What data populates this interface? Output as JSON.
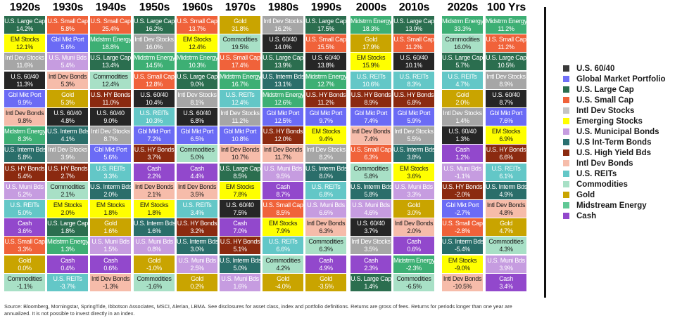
{
  "chart_data": {
    "type": "table",
    "title": "Asset class returns by decade",
    "columns": [
      "1920s",
      "1930s",
      "1940s",
      "1950s",
      "1960s",
      "1970s",
      "1980s",
      "1990s",
      "2000s",
      "2010s",
      "2020s",
      "100 Yrs"
    ],
    "cells": [
      [
        [
          "U.S. Large Cap",
          "14.2%",
          "lc"
        ],
        [
          "EM Stocks",
          "12.1%",
          "em"
        ],
        [
          "Intl Dev Stocks",
          "11.6%",
          "ids"
        ],
        [
          "U.S. 60/40",
          "11.3%",
          "u6040"
        ],
        [
          "Gbl Mkt Port",
          "9.9%",
          "gmp"
        ],
        [
          "Intl Dev Bonds",
          "9.8%",
          "idb"
        ],
        [
          "Midstrm Energy",
          "8.3%",
          "me"
        ],
        [
          "U.S. Interm Bds",
          "5.8%",
          "ib"
        ],
        [
          "U.S. HY Bonds",
          "5.4%",
          "hy"
        ],
        [
          "U.S. Muni Bds",
          "5.2%",
          "muni"
        ],
        [
          "U.S. REITs",
          "5.0%",
          "reit"
        ],
        [
          "Cash",
          "3.6%",
          "cash"
        ],
        [
          "U.S. Small Cap",
          "3.3%",
          "sc"
        ],
        [
          "Gold",
          "0.0%",
          "gold"
        ],
        [
          "Commodities",
          "-1.1%",
          "comm"
        ]
      ],
      [
        [
          "U.S. Small Cap",
          "5.8%",
          "sc"
        ],
        [
          "Gbl Mkt Port",
          "5.6%",
          "gmp"
        ],
        [
          "U.S. Muni Bds",
          "5.4%",
          "muni"
        ],
        [
          "Intl Dev Bonds",
          "5.3%",
          "idb"
        ],
        [
          "Gold",
          "5.3%",
          "gold"
        ],
        [
          "U.S. 60/40",
          "4.8%",
          "u6040"
        ],
        [
          "U.S. Interm Bds",
          "4.1%",
          "ib"
        ],
        [
          "Intl Dev Stocks",
          "3.9%",
          "ids"
        ],
        [
          "U.S. HY Bonds",
          "2.7%",
          "hy"
        ],
        [
          "Commodities",
          "2.1%",
          "comm"
        ],
        [
          "EM Stocks",
          "2.0%",
          "em"
        ],
        [
          "U.S. Large Cap",
          "1.8%",
          "lc"
        ],
        [
          "Midstrm Energy",
          "1.3%",
          "me"
        ],
        [
          "Cash",
          "0.4%",
          "cash"
        ],
        [
          "U.S. REITs",
          "-3.7%",
          "reit"
        ]
      ],
      [
        [
          "U.S. Small Cap",
          "25.4%",
          "sc"
        ],
        [
          "Midstrm Energy",
          "18.8%",
          "me"
        ],
        [
          "U.S. Large Cap",
          "13.4%",
          "lc"
        ],
        [
          "Commodities",
          "12.4%",
          "comm"
        ],
        [
          "U.S. HY Bonds",
          "11.0%",
          "hy"
        ],
        [
          "U.S. 60/40",
          "9.0%",
          "u6040"
        ],
        [
          "Intl Dev Stocks",
          "8.7%",
          "ids"
        ],
        [
          "Gbl Mkt Port",
          "5.6%",
          "gmp"
        ],
        [
          "U.S. REITs",
          "3.3%",
          "reit"
        ],
        [
          "U.S. Interm Bds",
          "2.0%",
          "ib"
        ],
        [
          "EM Stocks",
          "1.8%",
          "em"
        ],
        [
          "Gold",
          "1.6%",
          "gold"
        ],
        [
          "U.S. Muni Bds",
          "1.5%",
          "muni"
        ],
        [
          "Cash",
          "0.6%",
          "cash"
        ],
        [
          "Intl Dev Bonds",
          "-1.3%",
          "idb"
        ]
      ],
      [
        [
          "U.S. Large Cap",
          "16.2%",
          "lc"
        ],
        [
          "Intl Dev Stocks",
          "16.0%",
          "ids"
        ],
        [
          "Midstrm Energy",
          "14.5%",
          "me"
        ],
        [
          "U.S. Small Cap",
          "12.8%",
          "sc"
        ],
        [
          "U.S. 60/40",
          "10.4%",
          "u6040"
        ],
        [
          "U.S. REITs",
          "10.3%",
          "reit"
        ],
        [
          "Gbl Mkt Port",
          "7.2%",
          "gmp"
        ],
        [
          "U.S. HY Bonds",
          "3.7%",
          "hy"
        ],
        [
          "Cash",
          "2.2%",
          "cash"
        ],
        [
          "Intl Dev Bonds",
          "2.1%",
          "idb"
        ],
        [
          "EM Stocks",
          "1.8%",
          "em"
        ],
        [
          "U.S. Interm Bds",
          "1.6%",
          "ib"
        ],
        [
          "U.S. Muni Bds",
          "0.8%",
          "muni"
        ],
        [
          "Gold",
          "-1.0%",
          "gold"
        ],
        [
          "Commodities",
          "-1.6%",
          "comm"
        ]
      ],
      [
        [
          "U.S. Small Cap",
          "13.7%",
          "sc"
        ],
        [
          "EM Stocks",
          "12.4%",
          "em"
        ],
        [
          "Midstrm Energy",
          "10.3%",
          "me"
        ],
        [
          "U.S. Large Cap",
          "9.0%",
          "lc"
        ],
        [
          "Intl Dev Stocks",
          "8.1%",
          "ids"
        ],
        [
          "U.S. 60/40",
          "6.8%",
          "u6040"
        ],
        [
          "Gbl Mkt Port",
          "6.5%",
          "gmp"
        ],
        [
          "Commodities",
          "5.0%",
          "comm"
        ],
        [
          "Cash",
          "4.4%",
          "cash"
        ],
        [
          "Intl Dev Bonds",
          "3.5%",
          "idb"
        ],
        [
          "U.S. REITs",
          "3.4%",
          "reit"
        ],
        [
          "U.S. HY Bonds",
          "3.2%",
          "hy"
        ],
        [
          "U.S. Interm Bds",
          "3.0%",
          "ib"
        ],
        [
          "U.S. Muni Bds",
          "2.5%",
          "muni"
        ],
        [
          "Gold",
          "0.2%",
          "gold"
        ]
      ],
      [
        [
          "Gold",
          "31.8%",
          "gold"
        ],
        [
          "Commodities",
          "19.5%",
          "comm"
        ],
        [
          "U.S. Small Cap",
          "17.4%",
          "sc"
        ],
        [
          "Midstrm Energy",
          "16.7%",
          "me"
        ],
        [
          "U.S. REITs",
          "12.4%",
          "reit"
        ],
        [
          "Intl Dev Stocks",
          "11.2%",
          "ids"
        ],
        [
          "Gbl Mkt Port",
          "10.8%",
          "gmp"
        ],
        [
          "Intl Dev Bonds",
          "10.7%",
          "idb"
        ],
        [
          "U.S. Large Cap",
          "8.5%",
          "lc"
        ],
        [
          "EM Stocks",
          "7.8%",
          "em"
        ],
        [
          "U.S. 60/40",
          "7.5%",
          "u6040"
        ],
        [
          "Cash",
          "7.0%",
          "cash"
        ],
        [
          "U.S. HY Bonds",
          "5.1%",
          "hy"
        ],
        [
          "U.S. Interm Bds",
          "5.0%",
          "ib"
        ],
        [
          "U.S. Muni Bds",
          "1.6%",
          "muni"
        ]
      ],
      [
        [
          "Intl Dev Stocks",
          "16.2%",
          "ids"
        ],
        [
          "U.S. 60/40",
          "14.0%",
          "u6040"
        ],
        [
          "U.S. Large Cap",
          "13.9%",
          "lc"
        ],
        [
          "U.S. Interm Bds",
          "13.1%",
          "ib"
        ],
        [
          "Midstrm Energy",
          "12.6%",
          "me"
        ],
        [
          "Gbl Mkt Port",
          "12.5%",
          "gmp"
        ],
        [
          "U.S. HY Bonds",
          "12.0%",
          "hy"
        ],
        [
          "Intl Dev Bonds",
          "11.7%",
          "idb"
        ],
        [
          "U.S. Muni Bds",
          "9.5%",
          "muni"
        ],
        [
          "Cash",
          "8.7%",
          "cash"
        ],
        [
          "U.S. Small Cap",
          "8.5%",
          "sc"
        ],
        [
          "EM Stocks",
          "7.9%",
          "em"
        ],
        [
          "U.S. REITs",
          "6.6%",
          "reit"
        ],
        [
          "Commodities",
          "4.2%",
          "comm"
        ],
        [
          "Gold",
          "-4.0%",
          "gold"
        ]
      ],
      [
        [
          "U.S. Large Cap",
          "17.5%",
          "lc"
        ],
        [
          "U.S. Small Cap",
          "15.5%",
          "sc"
        ],
        [
          "U.S. 60/40",
          "13.8%",
          "u6040"
        ],
        [
          "Midstrm Energy",
          "12.7%",
          "me"
        ],
        [
          "U.S. HY Bonds",
          "11.2%",
          "hy"
        ],
        [
          "Gbl Mkt Port",
          "9.7%",
          "gmp"
        ],
        [
          "EM Stocks",
          "9.4%",
          "em"
        ],
        [
          "Intl Dev Stocks",
          "8.2%",
          "ids"
        ],
        [
          "U.S. Interm Bds",
          "8.0%",
          "ib"
        ],
        [
          "U.S. REITs",
          "6.8%",
          "reit"
        ],
        [
          "U.S. Muni Bds",
          "6.6%",
          "muni"
        ],
        [
          "Intl Dev Bonds",
          "6.3%",
          "idb"
        ],
        [
          "Commodities",
          "6.3%",
          "comm"
        ],
        [
          "Cash",
          "4.9%",
          "cash"
        ],
        [
          "Gold",
          "-3.5%",
          "gold"
        ]
      ],
      [
        [
          "Midstrm Energy",
          "18.3%",
          "me"
        ],
        [
          "Gold",
          "17.9%",
          "gold"
        ],
        [
          "EM Stocks",
          "15.9%",
          "em"
        ],
        [
          "U.S. REITs",
          "10.6%",
          "reit"
        ],
        [
          "U.S. HY Bonds",
          "8.9%",
          "hy"
        ],
        [
          "Gbl Mkt Port",
          "7.4%",
          "gmp"
        ],
        [
          "Intl Dev Bonds",
          "7.4%",
          "idb"
        ],
        [
          "U.S. Small Cap",
          "6.3%",
          "sc"
        ],
        [
          "Commodities",
          "5.8%",
          "comm"
        ],
        [
          "U.S. Interm Bds",
          "5.8%",
          "ib"
        ],
        [
          "U.S. Muni Bds",
          "4.6%",
          "muni"
        ],
        [
          "U.S. 60/40",
          "3.7%",
          "u6040"
        ],
        [
          "Intl Dev Stocks",
          "3.5%",
          "ids"
        ],
        [
          "Cash",
          "2.3%",
          "cash"
        ],
        [
          "U.S. Large Cap",
          "1.4%",
          "lc"
        ]
      ],
      [
        [
          "U.S. Large Cap",
          "13.9%",
          "lc"
        ],
        [
          "U.S. Small Cap",
          "11.2%",
          "sc"
        ],
        [
          "U.S. 60/40",
          "10.1%",
          "u6040"
        ],
        [
          "U.S. REITs",
          "8.3%",
          "reit"
        ],
        [
          "U.S. HY Bonds",
          "6.8%",
          "hy"
        ],
        [
          "Gbl Mkt Port",
          "5.9%",
          "gmp"
        ],
        [
          "Intl Dev Stocks",
          "5.5%",
          "ids"
        ],
        [
          "U.S. Interm Bds",
          "3.8%",
          "ib"
        ],
        [
          "EM Stocks",
          "3.6%",
          "em"
        ],
        [
          "U.S. Muni Bds",
          "3.3%",
          "muni"
        ],
        [
          "Gold",
          "3.0%",
          "gold"
        ],
        [
          "Intl Dev Bonds",
          "2.0%",
          "idb"
        ],
        [
          "Cash",
          "0.6%",
          "cash"
        ],
        [
          "Midstrm Energy",
          "-2.3%",
          "me"
        ],
        [
          "Commodities",
          "-6.5%",
          "comm"
        ]
      ],
      [
        [
          "Midstrm Energy",
          "33.3%",
          "me"
        ],
        [
          "Commodities",
          "16.0%",
          "comm"
        ],
        [
          "U.S. Large Cap",
          "5.7%",
          "lc"
        ],
        [
          "U.S. REITs",
          "4.7%",
          "reit"
        ],
        [
          "Gold",
          "2.0%",
          "gold"
        ],
        [
          "Intl Dev Stocks",
          "1.4%",
          "ids"
        ],
        [
          "U.S. 60/40",
          "1.3%",
          "u6040"
        ],
        [
          "Cash",
          "1.2%",
          "cash"
        ],
        [
          "U.S. Muni Bds",
          "-1.1%",
          "muni"
        ],
        [
          "U.S. HY Bonds",
          "-2.0%",
          "hy"
        ],
        [
          "Gbl Mkt Port",
          "-2.7%",
          "gmp"
        ],
        [
          "U.S. Small Cap",
          "-2.8%",
          "sc"
        ],
        [
          "U.S. Interm Bds",
          "-5.4%",
          "ib"
        ],
        [
          "EM Stocks",
          "-9.0%",
          "em"
        ],
        [
          "Intl Dev Bonds",
          "-10.5%",
          "idb"
        ]
      ],
      [
        [
          "Midstrm Energy",
          "11.2%",
          "me"
        ],
        [
          "U.S. Small Cap",
          "11.2%",
          "sc"
        ],
        [
          "U.S. Large Cap",
          "10.5%",
          "lc"
        ],
        [
          "Intl Dev Stocks",
          "8.9%",
          "ids"
        ],
        [
          "U.S. 60/40",
          "8.7%",
          "u6040"
        ],
        [
          "Gbl Mkt Port",
          "7.6%",
          "gmp"
        ],
        [
          "EM Stocks",
          "6.9%",
          "em"
        ],
        [
          "U.S. HY Bonds",
          "6.6%",
          "hy"
        ],
        [
          "U.S. REITs",
          "6.1%",
          "reit"
        ],
        [
          "U.S. Interm Bds",
          "4.9%",
          "ib"
        ],
        [
          "Intl Dev Bonds",
          "4.8%",
          "idb"
        ],
        [
          "Gold",
          "4.7%",
          "gold"
        ],
        [
          "Commodities",
          "4.3%",
          "comm"
        ],
        [
          "U.S. Muni Bds",
          "3.9%",
          "muni"
        ],
        [
          "Cash",
          "3.4%",
          "cash"
        ]
      ]
    ],
    "legend": [
      {
        "key": "u6040",
        "label": "U.S. 60/40"
      },
      {
        "key": "gmp",
        "label": "Global Market Portfolio"
      },
      {
        "key": "lc",
        "label": "U.S. Large Cap"
      },
      {
        "key": "sc",
        "label": "U.S. Small Cap"
      },
      {
        "key": "ids",
        "label": "Intl Dev Stocks"
      },
      {
        "key": "em",
        "label": "Emerging Stocks"
      },
      {
        "key": "muni",
        "label": "U.S. Municipal Bonds"
      },
      {
        "key": "ib",
        "label": "U.S Int-Term Bonds"
      },
      {
        "key": "hy",
        "label": "U.S. High Yield Bds"
      },
      {
        "key": "idb",
        "label": "Intl Dev Bonds"
      },
      {
        "key": "reit",
        "label": "U.S. REITs"
      },
      {
        "key": "comm",
        "label": "Commodities"
      },
      {
        "key": "gold",
        "label": "Gold"
      },
      {
        "key": "me",
        "label": "Midstream Energy"
      },
      {
        "key": "cash",
        "label": "Cash"
      }
    ],
    "legend_position": "right"
  },
  "colors": {
    "u6040": {
      "bg": "#262626",
      "fg": "#ffffff",
      "swatch": "#3a3a3a"
    },
    "gmp": {
      "bg": "#6b6bf5",
      "fg": "#ffffff",
      "swatch": "#7070f8"
    },
    "lc": {
      "bg": "#2b6e4f",
      "fg": "#ffffff",
      "swatch": "#2b6e4f"
    },
    "sc": {
      "bg": "#f0623a",
      "fg": "#ffffff",
      "swatch": "#f0623a"
    },
    "ids": {
      "bg": "#a6a6a6",
      "fg": "#ffffff",
      "swatch": "#c4c4c4"
    },
    "em": {
      "bg": "#ffff00",
      "fg": "#1a1a1a",
      "swatch": "#ffff00"
    },
    "muni": {
      "bg": "#c69ce0",
      "fg": "#ffffff",
      "swatch": "#c69ce0"
    },
    "ib": {
      "bg": "#2a6e6a",
      "fg": "#ffffff",
      "swatch": "#2a7070"
    },
    "hy": {
      "bg": "#8b2a10",
      "fg": "#ffffff",
      "swatch": "#8b2a10"
    },
    "idb": {
      "bg": "#f6bcaa",
      "fg": "#1a1a1a",
      "swatch": "#f6bcaa"
    },
    "reit": {
      "bg": "#63c7c7",
      "fg": "#ffffff",
      "swatch": "#63c7c7"
    },
    "comm": {
      "bg": "#a8e0c6",
      "fg": "#1a1a1a",
      "swatch": "#a8e0c6"
    },
    "gold": {
      "bg": "#c9a400",
      "fg": "#ffffff",
      "swatch": "#c9a400"
    },
    "me": {
      "bg": "#3daf74",
      "fg": "#ffffff",
      "swatch": "#60c895"
    },
    "cash": {
      "bg": "#9248cc",
      "fg": "#ffffff",
      "swatch": "#9248cc"
    }
  },
  "footer": {
    "note": "Source: Bloomberg, Morningstar, SpringTide, Ibbotson Associates, MSCI, Alerian, LBMA. See disclosures for asset class, index and portfolio definitions. Returns are gross of fees. Returns for periods longer than one year are annualized. It is not possible to invest directly in an index."
  }
}
